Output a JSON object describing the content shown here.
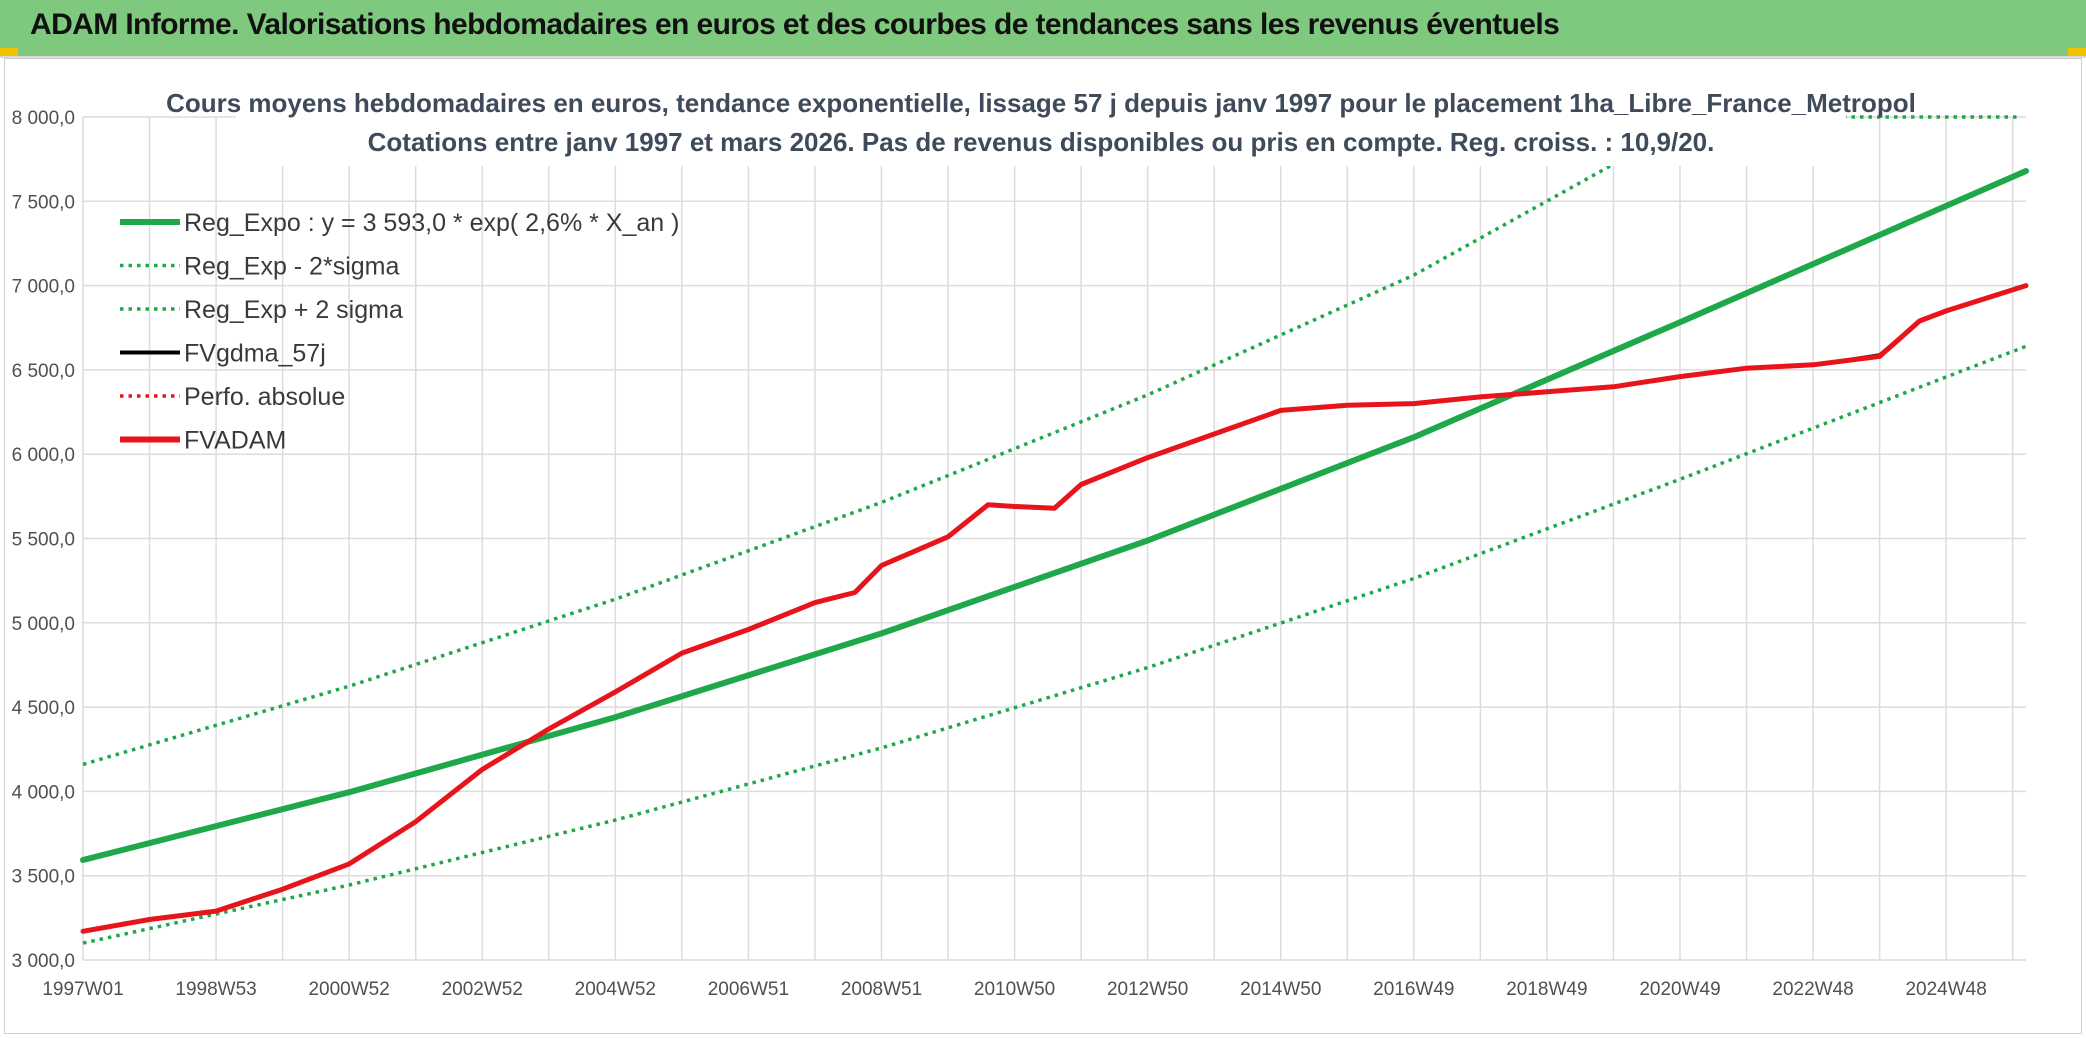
{
  "header": {
    "title": "ADAM Informe. Valorisations hebdomadaires en euros et des courbes de tendances sans les revenus éventuels"
  },
  "colors": {
    "header_bg": "#7fc97f",
    "green": "#1fa84a",
    "red": "#e8141b",
    "black": "#000000",
    "grid": "#dcdcdc"
  },
  "chart_data": {
    "type": "line",
    "title": "Cours moyens hebdomadaires en euros, tendance exponentielle, lissage 57 j depuis janv 1997 pour le placement 1ha_Libre_France_Metropol",
    "subtitle": "Cotations entre janv 1997 et mars 2026. Pas de revenus disponibles ou pris en compte. Reg. croiss. : 10,9/20.",
    "xlabel": "",
    "ylabel": "",
    "x_tick_labels": [
      "1997W01",
      "1998W53",
      "2000W52",
      "2002W52",
      "2004W52",
      "2006W51",
      "2008W51",
      "2010W50",
      "2012W50",
      "2014W50",
      "2016W49",
      "2018W49",
      "2020W49",
      "2022W48",
      "2024W48"
    ],
    "x_tick_years": [
      1997,
      1999,
      2001,
      2003,
      2005,
      2007,
      2009,
      2011,
      2013,
      2015,
      2017,
      2019,
      2021,
      2023,
      2025
    ],
    "xlim": [
      1997.0,
      2026.2
    ],
    "ylim": [
      3000,
      8000
    ],
    "y_ticks": [
      3000,
      3500,
      4000,
      4500,
      5000,
      5500,
      6000,
      6500,
      7000,
      7500,
      8000
    ],
    "y_tick_labels": [
      "3 000,0",
      "3 500,0",
      "4 000,0",
      "4 500,0",
      "5 000,0",
      "5 500,0",
      "6 000,0",
      "6 500,0",
      "7 000,0",
      "7 500,0",
      "8 000,0"
    ],
    "grid": true,
    "legend_position": "top-left",
    "legend": [
      {
        "label": "Reg_Expo : y = 3 593,0 * exp( 2,6% *  X_an )",
        "color": "#1fa84a",
        "style": "solid"
      },
      {
        "label": "Reg_Exp - 2*sigma",
        "color": "#1fa84a",
        "style": "dotted"
      },
      {
        "label": "Reg_Exp + 2 sigma",
        "color": "#1fa84a",
        "style": "dotted"
      },
      {
        "label": "FVgdma_57j",
        "color": "#000000",
        "style": "solid"
      },
      {
        "label": "Perfo. absolue",
        "color": "#e8141b",
        "style": "dotted"
      },
      {
        "label": "FVADAM",
        "color": "#e8141b",
        "style": "solid"
      }
    ],
    "series": [
      {
        "name": "Reg_Expo : y = 3 593,0 * exp( 2,6% *  X_an )",
        "color": "#1fa84a",
        "style": "solid",
        "width": 6,
        "x": [
          1997.0,
          2001.0,
          2005.0,
          2009.0,
          2013.0,
          2017.0,
          2021.0,
          2026.2
        ],
        "y": [
          3593,
          3995,
          4440,
          4937,
          5488,
          6101,
          6783,
          7680
        ]
      },
      {
        "name": "Reg_Exp - 2*sigma",
        "color": "#1fa84a",
        "style": "dotted",
        "width": 3.5,
        "x": [
          1997.0,
          2001.0,
          2005.0,
          2009.0,
          2013.0,
          2017.0,
          2021.0,
          2026.2
        ],
        "y": [
          3100,
          3445,
          3830,
          4258,
          4734,
          5263,
          5851,
          6640
        ]
      },
      {
        "name": "Reg_Exp + 2 sigma",
        "color": "#1fa84a",
        "style": "dotted",
        "width": 3.5,
        "x": [
          1997.0,
          2001.0,
          2005.0,
          2009.0,
          2013.0,
          2017.0,
          2020.0
        ],
        "y": [
          4160,
          4624,
          5140,
          5714,
          6352,
          7062,
          7720
        ]
      },
      {
        "name": "FVgdma_57j",
        "color": "#000000",
        "style": "solid",
        "width": 3,
        "x": [
          1997.0,
          1998.0,
          1999.0,
          2000.0,
          2001.0,
          2002.0,
          2003.0,
          2004.0,
          2005.0,
          2006.0,
          2007.0,
          2008.0,
          2008.6,
          2009.0,
          2010.0,
          2010.6,
          2011.0,
          2011.6,
          2012.0,
          2013.0,
          2014.0,
          2015.0,
          2016.0,
          2017.0,
          2018.0,
          2019.0,
          2020.0,
          2021.0,
          2022.0,
          2023.0,
          2024.0,
          2024.6,
          2025.0,
          2026.2
        ],
        "y": [
          3170,
          3240,
          3290,
          3420,
          3570,
          3820,
          4130,
          4370,
          4590,
          4820,
          4960,
          5120,
          5180,
          5340,
          5510,
          5700,
          5690,
          5680,
          5820,
          5980,
          6120,
          6260,
          6290,
          6300,
          6340,
          6370,
          6400,
          6460,
          6510,
          6530,
          6590,
          6790,
          6850,
          7000
        ]
      },
      {
        "name": "Perfo. absolue",
        "color": "#e8141b",
        "style": "dotted",
        "width": 3,
        "x": [],
        "y": []
      },
      {
        "name": "FVADAM",
        "color": "#e8141b",
        "style": "solid",
        "width": 5,
        "x": [
          1997.0,
          1998.0,
          1999.0,
          2000.0,
          2001.0,
          2002.0,
          2003.0,
          2004.0,
          2005.0,
          2006.0,
          2007.0,
          2008.0,
          2008.6,
          2009.0,
          2010.0,
          2010.6,
          2011.0,
          2011.6,
          2012.0,
          2013.0,
          2014.0,
          2015.0,
          2016.0,
          2017.0,
          2018.0,
          2019.0,
          2020.0,
          2021.0,
          2022.0,
          2023.0,
          2024.0,
          2024.6,
          2025.0,
          2026.2
        ],
        "y": [
          3170,
          3240,
          3290,
          3420,
          3570,
          3820,
          4130,
          4370,
          4590,
          4820,
          4960,
          5120,
          5180,
          5340,
          5510,
          5700,
          5690,
          5680,
          5820,
          5980,
          6120,
          6260,
          6290,
          6300,
          6340,
          6370,
          6400,
          6460,
          6510,
          6530,
          6580,
          6790,
          6850,
          7000
        ]
      }
    ]
  }
}
